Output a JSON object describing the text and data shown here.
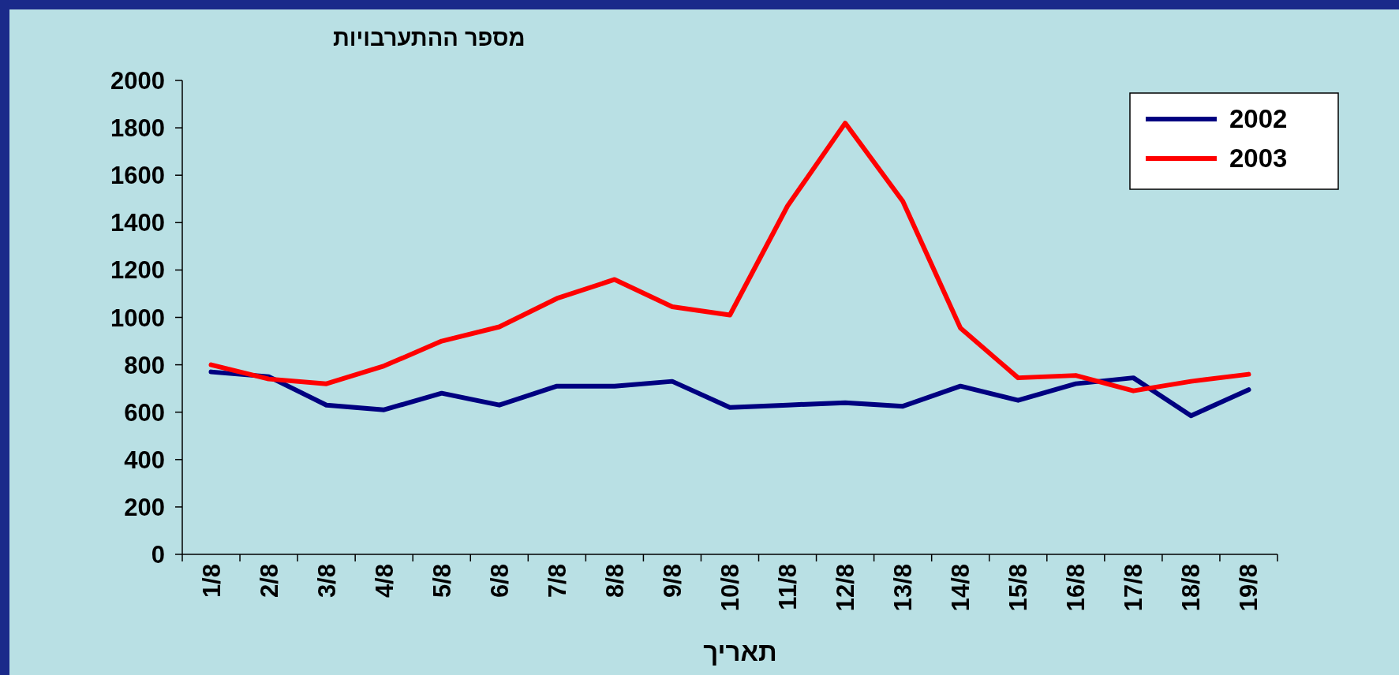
{
  "chart_data": {
    "type": "line",
    "ylabel": "מספר ההתערבויות",
    "xlabel": "תאריך",
    "categories": [
      "1/8",
      "2/8",
      "3/8",
      "4/8",
      "5/8",
      "6/8",
      "7/8",
      "8/8",
      "9/8",
      "10/8",
      "11/8",
      "12/8",
      "13/8",
      "14/8",
      "15/8",
      "16/8",
      "17/8",
      "18/8",
      "19/8"
    ],
    "series": [
      {
        "name": "2002",
        "color": "#000080",
        "values": [
          770,
          750,
          630,
          610,
          680,
          630,
          710,
          710,
          730,
          620,
          630,
          640,
          625,
          710,
          650,
          720,
          745,
          585,
          695
        ]
      },
      {
        "name": "2003",
        "color": "#ff0000",
        "values": [
          800,
          740,
          720,
          795,
          900,
          960,
          1080,
          1160,
          1045,
          1010,
          1470,
          1820,
          1490,
          955,
          745,
          755,
          690,
          730,
          760
        ]
      }
    ],
    "ylim": [
      0,
      2000
    ],
    "yticks": [
      0,
      200,
      400,
      600,
      800,
      1000,
      1200,
      1400,
      1600,
      1800,
      2000
    ],
    "grid": false,
    "legend": "top right"
  }
}
